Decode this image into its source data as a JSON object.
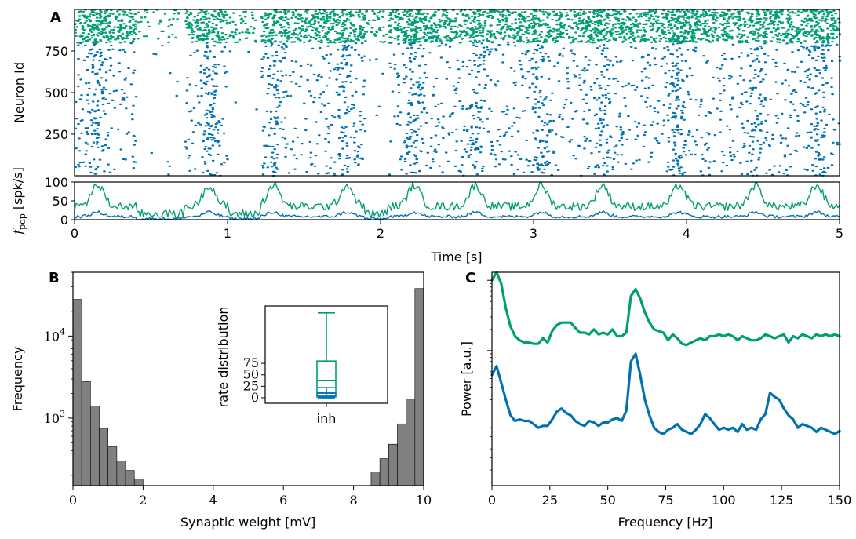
{
  "colors": {
    "exc": "#0072b2",
    "inh": "#009e73",
    "hist": "#808080",
    "axis": "#000000"
  },
  "chart_data": [
    {
      "panel_label": "A",
      "type": "scatter",
      "subtype": "raster",
      "xlim": [
        0,
        5
      ],
      "ylim": [
        0,
        1000
      ],
      "ylabel": "Neuron Id",
      "yticks": [
        "250",
        "500",
        "750"
      ],
      "series": [
        {
          "rows": [
            0,
            800
          ],
          "color": "#0072b2"
        },
        {
          "rows": [
            800,
            1000
          ],
          "color": "#009e73"
        }
      ],
      "bursts_s": [
        0.15,
        0.88,
        1.3,
        1.78,
        2.22,
        2.62,
        3.05,
        3.45,
        3.95,
        4.45,
        4.85
      ],
      "quiet_s": [
        [
          0.4,
          0.72
        ],
        [
          1.0,
          1.22
        ],
        [
          1.9,
          2.05
        ]
      ]
    },
    {
      "type": "line",
      "xlabel": "Time [s]",
      "ylabel_main": "f",
      "ylabel_sub": "pop",
      "ylabel_unit": "[spk/s]",
      "xlim": [
        0,
        5
      ],
      "ylim": [
        0,
        100
      ],
      "xticks": [
        "0",
        "1",
        "2",
        "3",
        "4",
        "5"
      ],
      "yticks": [
        "0",
        "50",
        "100"
      ],
      "series": [
        {
          "color": "#009e73",
          "baseline": 35,
          "burst_peak": 92
        },
        {
          "color": "#0072b2",
          "baseline": 8,
          "burst_peak": 20
        }
      ]
    },
    {
      "panel_label": "B",
      "type": "bar",
      "subtype": "histogram",
      "xlabel": "Synaptic weight [mV]",
      "ylabel": "Frequency",
      "xlim": [
        0,
        10
      ],
      "yscale": "log",
      "ylim": [
        150,
        60000
      ],
      "xticks": [
        "0",
        "2",
        "4",
        "6",
        "8",
        "10"
      ],
      "yticks": [
        {
          "base": "10",
          "exp": "3"
        },
        {
          "base": "10",
          "exp": "4"
        }
      ],
      "bin_width": 0.25,
      "bins": [
        {
          "x": 0,
          "count": 28000
        },
        {
          "x": 0.25,
          "count": 2800
        },
        {
          "x": 0.5,
          "count": 1400
        },
        {
          "x": 0.75,
          "count": 750
        },
        {
          "x": 1.0,
          "count": 450
        },
        {
          "x": 1.25,
          "count": 300
        },
        {
          "x": 1.5,
          "count": 230
        },
        {
          "x": 1.75,
          "count": 180
        },
        {
          "x": 8.5,
          "count": 220
        },
        {
          "x": 8.75,
          "count": 320
        },
        {
          "x": 9.0,
          "count": 480
        },
        {
          "x": 9.25,
          "count": 850
        },
        {
          "x": 9.5,
          "count": 1700
        },
        {
          "x": 9.75,
          "count": 38000
        }
      ]
    },
    {
      "type": "box",
      "ylabel": "rate distribution",
      "xticks": [
        "inh"
      ],
      "yticks": [
        "0",
        "25",
        "50",
        "75"
      ],
      "ylim": [
        -12,
        200
      ],
      "boxes": [
        {
          "color": "#009e73",
          "whislo": 0,
          "q1": 12,
          "median": 38,
          "q3": 80,
          "whishi": 185
        },
        {
          "color": "#0072b2",
          "whislo": 0,
          "q1": 2,
          "median": 5,
          "q3": 10,
          "whishi": 22
        }
      ]
    },
    {
      "panel_label": "C",
      "type": "line",
      "xlabel": "Frequency [Hz]",
      "ylabel": "Power [a.u.]",
      "yscale": "log",
      "xlim": [
        0,
        150
      ],
      "xticks": [
        "0",
        "25",
        "50",
        "75",
        "100",
        "125",
        "150"
      ],
      "x": [
        0,
        2,
        4,
        6,
        8,
        10,
        12,
        14,
        16,
        18,
        20,
        22,
        24,
        26,
        28,
        30,
        32,
        34,
        36,
        38,
        40,
        42,
        44,
        46,
        48,
        50,
        52,
        54,
        56,
        58,
        60,
        62,
        64,
        66,
        68,
        70,
        72,
        74,
        76,
        78,
        80,
        82,
        84,
        86,
        88,
        90,
        92,
        94,
        96,
        98,
        100,
        102,
        104,
        106,
        108,
        110,
        112,
        114,
        116,
        118,
        120,
        122,
        124,
        126,
        128,
        130,
        132,
        134,
        136,
        138,
        140,
        142,
        144,
        146,
        148,
        150
      ],
      "series": [
        {
          "color": "#009e73",
          "values": [
            100,
            180,
            90,
            40,
            22,
            16,
            14,
            13,
            13,
            12.5,
            12.5,
            15,
            13,
            19,
            23,
            25,
            25,
            25,
            21,
            18,
            18,
            17,
            20,
            17,
            18,
            17,
            20,
            16,
            16,
            18,
            60,
            75,
            55,
            35,
            25,
            20,
            19,
            18,
            14,
            17,
            15,
            12.5,
            12,
            13,
            14,
            15,
            14,
            16,
            16,
            17,
            16,
            17,
            16,
            14,
            16,
            15,
            14,
            14,
            15,
            17,
            16,
            15,
            16,
            17,
            13,
            16,
            15,
            17,
            16,
            15,
            17,
            16,
            17,
            16,
            17,
            16
          ]
        },
        {
          "color": "#0072b2",
          "values": [
            4.5,
            6,
            3.5,
            2,
            1.2,
            1.0,
            1.05,
            1.0,
            1.0,
            0.9,
            0.8,
            0.85,
            0.85,
            1.05,
            1.35,
            1.5,
            1.3,
            1.2,
            1.0,
            0.9,
            0.85,
            1.0,
            0.95,
            0.85,
            0.95,
            0.95,
            1.05,
            1.1,
            1.0,
            1.4,
            7,
            9,
            4.5,
            2,
            1.2,
            0.8,
            0.7,
            0.65,
            0.75,
            0.8,
            0.9,
            0.75,
            0.7,
            0.65,
            0.75,
            0.9,
            1.25,
            1.1,
            0.9,
            0.75,
            0.8,
            0.75,
            0.8,
            0.7,
            0.9,
            0.75,
            0.8,
            0.75,
            1.05,
            1.25,
            2.5,
            2.2,
            2.0,
            1.5,
            1.2,
            1.05,
            0.8,
            0.9,
            0.85,
            0.8,
            0.7,
            0.8,
            0.75,
            0.7,
            0.65,
            0.72
          ]
        }
      ]
    }
  ]
}
